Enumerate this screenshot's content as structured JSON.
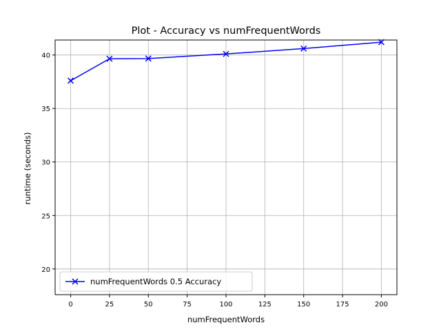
{
  "chart_data": {
    "type": "line",
    "title": "Plot - Accuracy vs numFrequentWords",
    "xlabel": "numFrequentWords",
    "ylabel": "runtime (seconds)",
    "xlim": [
      -10,
      210
    ],
    "ylim": [
      17.6,
      41.4
    ],
    "xticks": [
      0,
      25,
      50,
      75,
      100,
      125,
      150,
      175,
      200
    ],
    "yticks": [
      20,
      25,
      30,
      35,
      40
    ],
    "grid": true,
    "legend_position": "lower-left",
    "series": [
      {
        "name": "numFrequentWords 0.5 Accuracy",
        "color": "#0000ff",
        "marker": "x",
        "x": [
          0,
          25,
          50,
          100,
          150,
          200
        ],
        "y": [
          37.6,
          39.65,
          39.67,
          40.1,
          40.6,
          41.2
        ]
      }
    ]
  }
}
